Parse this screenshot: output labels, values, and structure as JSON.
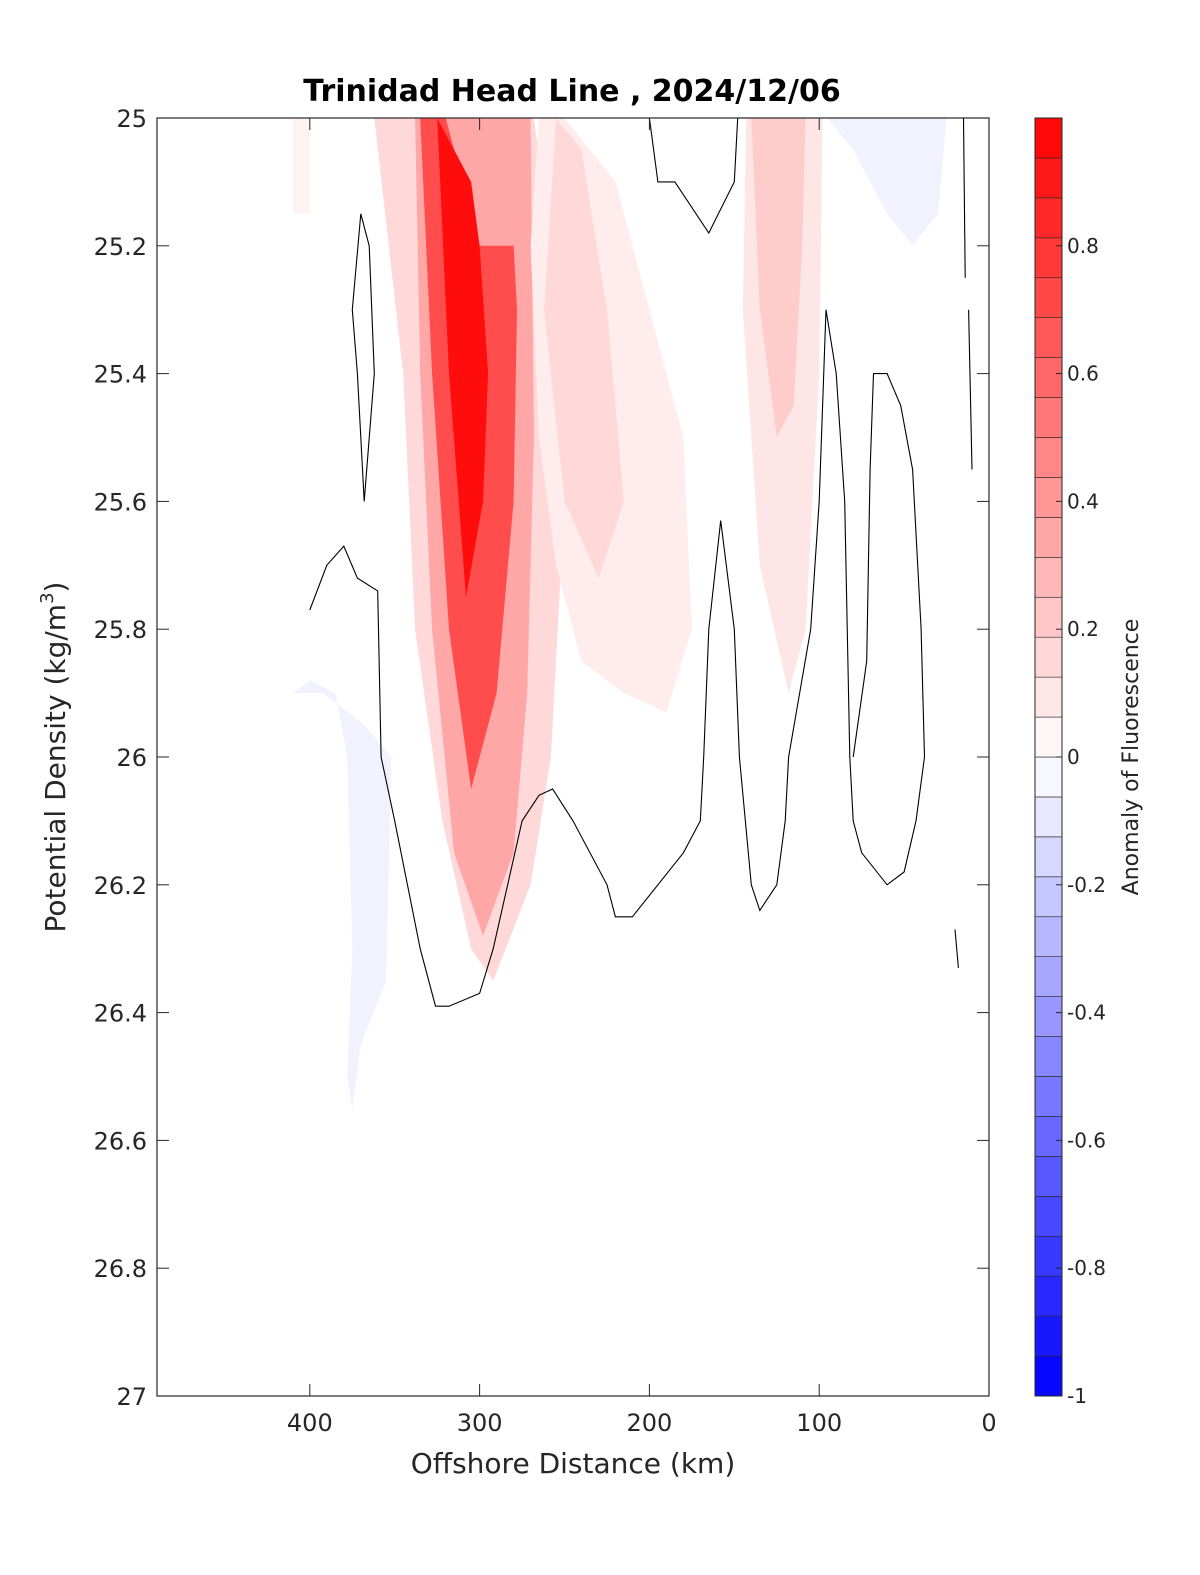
{
  "chart_data": {
    "type": "heatmap",
    "title": "Trinidad Head Line , 2024/12/06",
    "xlabel": "Offshore Distance (km)",
    "ylabel": "Potential Density (kg/m",
    "ylabel_superscript": "3",
    "ylabel_suffix": ")",
    "xlim": [
      0,
      490
    ],
    "x_reversed": true,
    "ylim": [
      25,
      27
    ],
    "y_reversed": true,
    "x_ticks": [
      400,
      300,
      200,
      100,
      0
    ],
    "x_tick_labels": [
      "400",
      "300",
      "200",
      "100",
      "0"
    ],
    "y_ticks": [
      25,
      25.2,
      25.4,
      25.6,
      25.8,
      26,
      26.2,
      26.4,
      26.6,
      26.8,
      27
    ],
    "y_tick_labels": [
      "25",
      "25.2",
      "25.4",
      "25.6",
      "25.8",
      "26",
      "26.2",
      "26.4",
      "26.6",
      "26.8",
      "27"
    ],
    "colorbar": {
      "label": "Anomaly of Fluorescence",
      "clim": [
        -1,
        1
      ],
      "levels": 32,
      "ticks": [
        0.8,
        0.6,
        0.4,
        0.2,
        0,
        -0.2,
        -0.4,
        -0.6,
        -0.8,
        -1
      ],
      "tick_labels": [
        "0.8",
        "0.6",
        "0.4",
        "0.2",
        "0",
        "-0.2",
        "-0.4",
        "-0.6",
        "-0.8",
        "-1"
      ],
      "colormap": "blue-white-red",
      "positive_color": "#ff0000",
      "negative_color": "#0000ff",
      "neutral_color": "#ffffff"
    },
    "fields": [
      {
        "name": "surface_patch_400km",
        "polygon": [
          [
            410,
            25
          ],
          [
            400,
            25
          ],
          [
            400,
            25.15
          ],
          [
            410,
            25.15
          ]
        ],
        "value": 0.05
      },
      {
        "name": "core_bloom_300km",
        "polygon": [
          [
            362,
            25
          ],
          [
            345,
            25.4
          ],
          [
            338,
            25.8
          ],
          [
            322,
            26.1
          ],
          [
            305,
            26.3
          ],
          [
            292,
            26.35
          ],
          [
            270,
            26.2
          ],
          [
            258,
            26.0
          ],
          [
            250,
            25.6
          ],
          [
            258,
            25.2
          ],
          [
            268,
            25
          ],
          [
            300,
            25
          ],
          [
            322,
            25
          ]
        ],
        "value": 0.15
      },
      {
        "name": "core_bloom_inner",
        "polygon": [
          [
            338,
            25
          ],
          [
            335,
            25.4
          ],
          [
            328,
            25.8
          ],
          [
            315,
            26.15
          ],
          [
            298,
            26.28
          ],
          [
            280,
            26.15
          ],
          [
            272,
            25.9
          ],
          [
            268,
            25.5
          ],
          [
            270,
            25
          ],
          [
            318,
            25
          ]
        ],
        "value": 0.35
      },
      {
        "name": "core_bloom_peak",
        "polygon": [
          [
            335,
            25
          ],
          [
            328,
            25.4
          ],
          [
            318,
            25.8
          ],
          [
            305,
            26.05
          ],
          [
            290,
            25.9
          ],
          [
            280,
            25.6
          ],
          [
            278,
            25.3
          ],
          [
            280,
            25.2
          ],
          [
            300,
            25.2
          ],
          [
            320,
            25
          ],
          [
            330,
            25
          ]
        ],
        "value": 0.7
      },
      {
        "name": "core_bloom_max",
        "polygon": [
          [
            325,
            25
          ],
          [
            318,
            25.4
          ],
          [
            308,
            25.75
          ],
          [
            298,
            25.6
          ],
          [
            295,
            25.4
          ],
          [
            300,
            25.2
          ],
          [
            305,
            25.1
          ],
          [
            325,
            25
          ]
        ],
        "value": 0.95
      },
      {
        "name": "shelf_patch_220km",
        "polygon": [
          [
            265,
            25
          ],
          [
            250,
            25
          ],
          [
            220,
            25.1
          ],
          [
            200,
            25.3
          ],
          [
            180,
            25.5
          ],
          [
            175,
            25.8
          ],
          [
            190,
            25.93
          ],
          [
            215,
            25.9
          ],
          [
            240,
            25.85
          ],
          [
            255,
            25.7
          ],
          [
            265,
            25.5
          ],
          [
            270,
            25.2
          ]
        ],
        "value": 0.07
      },
      {
        "name": "shelf_patch_inner",
        "polygon": [
          [
            255,
            25
          ],
          [
            240,
            25.05
          ],
          [
            225,
            25.3
          ],
          [
            215,
            25.6
          ],
          [
            230,
            25.72
          ],
          [
            250,
            25.6
          ],
          [
            262,
            25.3
          ]
        ],
        "value": 0.15
      },
      {
        "name": "patch_120km",
        "polygon": [
          [
            143,
            25
          ],
          [
            145,
            25.3
          ],
          [
            135,
            25.7
          ],
          [
            118,
            25.9
          ],
          [
            108,
            25.8
          ],
          [
            100,
            25.4
          ],
          [
            98,
            25
          ],
          [
            118,
            25
          ]
        ],
        "value": 0.1
      },
      {
        "name": "patch_120km_inner",
        "polygon": [
          [
            140,
            25
          ],
          [
            135,
            25.3
          ],
          [
            125,
            25.5
          ],
          [
            115,
            25.45
          ],
          [
            110,
            25.2
          ],
          [
            108,
            25
          ]
        ],
        "value": 0.2
      },
      {
        "name": "negative_offshore",
        "polygon": [
          [
            410,
            25.9
          ],
          [
            400,
            25.88
          ],
          [
            385,
            25.9
          ],
          [
            378,
            26.0
          ],
          [
            375,
            26.3
          ],
          [
            378,
            26.5
          ],
          [
            375,
            26.55
          ],
          [
            370,
            26.45
          ],
          [
            355,
            26.35
          ],
          [
            352,
            26.0
          ],
          [
            368,
            25.95
          ],
          [
            392,
            25.9
          ]
        ],
        "value": -0.05
      },
      {
        "name": "negative_nearshore",
        "polygon": [
          [
            95,
            25
          ],
          [
            80,
            25.05
          ],
          [
            60,
            25.15
          ],
          [
            45,
            25.2
          ],
          [
            30,
            25.15
          ],
          [
            25,
            25
          ],
          [
            60,
            25
          ]
        ],
        "value": -0.05
      }
    ],
    "zero_contours": [
      [
        [
          400,
          25.77
        ],
        [
          390,
          25.7
        ],
        [
          380,
          25.67
        ],
        [
          372,
          25.72
        ],
        [
          360,
          25.74
        ],
        [
          358,
          26.0
        ],
        [
          350,
          26.1
        ],
        [
          335,
          26.3
        ],
        [
          326,
          26.39
        ],
        [
          318,
          26.39
        ],
        [
          300,
          26.37
        ],
        [
          292,
          26.3
        ],
        [
          275,
          26.1
        ],
        [
          265,
          26.06
        ],
        [
          257,
          26.05
        ],
        [
          245,
          26.1
        ],
        [
          225,
          26.2
        ],
        [
          220,
          26.25
        ],
        [
          210,
          26.25
        ],
        [
          195,
          26.2
        ],
        [
          180,
          26.15
        ],
        [
          170,
          26.1
        ],
        [
          168,
          26.0
        ],
        [
          165,
          25.8
        ],
        [
          158,
          25.63
        ],
        [
          150,
          25.8
        ],
        [
          147,
          26.0
        ],
        [
          140,
          26.2
        ],
        [
          135,
          26.24
        ],
        [
          125,
          26.2
        ],
        [
          120,
          26.1
        ],
        [
          118,
          26.0
        ],
        [
          105,
          25.8
        ],
        [
          100,
          25.6
        ],
        [
          96,
          25.3
        ],
        [
          90,
          25.4
        ],
        [
          85,
          25.6
        ],
        [
          82,
          26.0
        ],
        [
          80,
          26.1
        ],
        [
          75,
          26.15
        ],
        [
          60,
          26.2
        ],
        [
          50,
          26.18
        ],
        [
          43,
          26.1
        ],
        [
          38,
          26.0
        ],
        [
          40,
          25.8
        ],
        [
          45,
          25.55
        ],
        [
          52,
          25.45
        ],
        [
          60,
          25.4
        ],
        [
          68,
          25.4
        ],
        [
          70,
          25.55
        ],
        [
          72,
          25.85
        ],
        [
          80,
          26.0
        ]
      ],
      [
        [
          370,
          25.15
        ],
        [
          375,
          25.3
        ],
        [
          372,
          25.4
        ],
        [
          368,
          25.6
        ],
        [
          362,
          25.4
        ],
        [
          365,
          25.2
        ],
        [
          370,
          25.15
        ]
      ],
      [
        [
          200,
          25
        ],
        [
          195,
          25.1
        ],
        [
          185,
          25.1
        ],
        [
          165,
          25.18
        ],
        [
          150,
          25.1
        ],
        [
          148,
          25
        ]
      ],
      [
        [
          15,
          25
        ],
        [
          14,
          25.25
        ]
      ],
      [
        [
          12,
          25.3
        ],
        [
          10,
          25.55
        ]
      ],
      [
        [
          20,
          26.27
        ],
        [
          18,
          26.33
        ]
      ]
    ]
  }
}
